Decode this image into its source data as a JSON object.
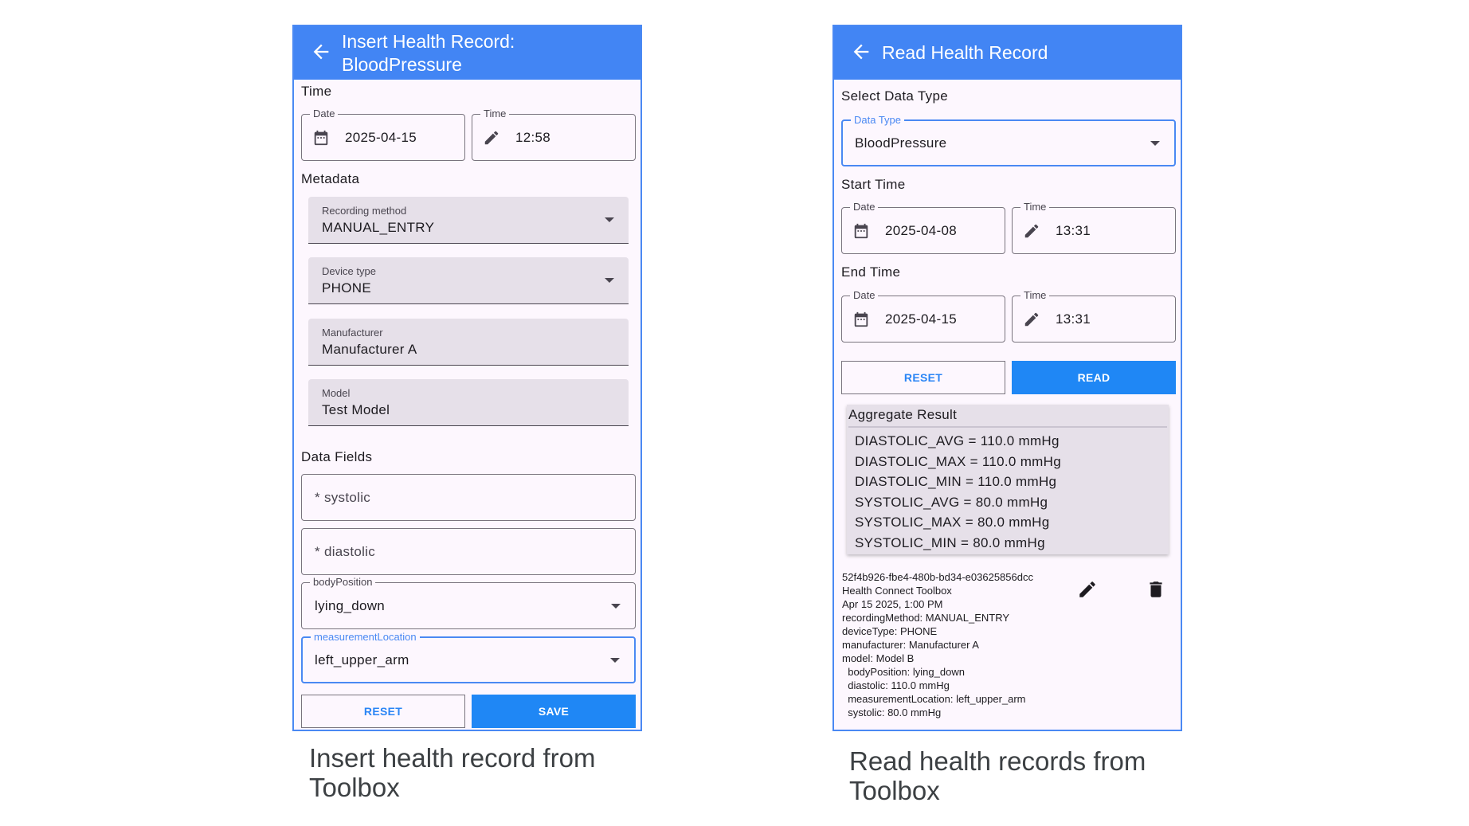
{
  "insert": {
    "title": "Insert Health Record:",
    "title2": "BloodPressure",
    "time_section": "Time",
    "date_label": "Date",
    "date_value": "2025-04-15",
    "time_label": "Time",
    "time_value": "12:58",
    "metadata_section": "Metadata",
    "recording_method_label": "Recording method",
    "recording_method_value": "MANUAL_ENTRY",
    "device_type_label": "Device type",
    "device_type_value": "PHONE",
    "manufacturer_label": "Manufacturer",
    "manufacturer_value": "Manufacturer A",
    "model_label": "Model",
    "model_value": "Test Model",
    "data_fields_section": "Data Fields",
    "systolic_placeholder": "* systolic",
    "diastolic_placeholder": "* diastolic",
    "body_position_label": "bodyPosition",
    "body_position_value": "lying_down",
    "measurement_location_label": "measurementLocation",
    "measurement_location_value": "left_upper_arm",
    "reset_label": "RESET",
    "save_label": "SAVE",
    "caption": "Insert health record from Toolbox"
  },
  "read": {
    "title": "Read Health Record",
    "select_section": "Select Data Type",
    "data_type_label": "Data Type",
    "data_type_value": "BloodPressure",
    "start_section": "Start Time",
    "start_date_label": "Date",
    "start_date_value": "2025-04-08",
    "start_time_label": "Time",
    "start_time_value": "13:31",
    "end_section": "End Time",
    "end_date_label": "Date",
    "end_date_value": "2025-04-15",
    "end_time_label": "Time",
    "end_time_value": "13:31",
    "reset_label": "RESET",
    "read_label": "READ",
    "aggregate_title": "Aggregate Result",
    "aggregate": [
      "DIASTOLIC_AVG = 110.0 mmHg",
      "DIASTOLIC_MAX = 110.0 mmHg",
      "DIASTOLIC_MIN = 110.0 mmHg",
      "SYSTOLIC_AVG = 80.0 mmHg",
      "SYSTOLIC_MAX = 80.0 mmHg",
      "SYSTOLIC_MIN = 80.0 mmHg"
    ],
    "record": [
      "52f4b926-fbe4-480b-bd34-e03625856dcc",
      "Health Connect Toolbox",
      "Apr 15 2025, 1:00 PM",
      "recordingMethod: MANUAL_ENTRY",
      "deviceType: PHONE",
      "manufacturer: Manufacturer A",
      "model: Model B",
      "  bodyPosition: lying_down",
      "  diastolic: 110.0 mmHg",
      "  measurementLocation: left_upper_arm",
      "  systolic: 80.0 mmHg"
    ],
    "caption": "Read health records from Toolbox"
  },
  "colors": {
    "header": "#4285f4",
    "primary_button": "#1f87f5",
    "background": "#fdf7fe",
    "filled_field": "#e6e0e9"
  }
}
